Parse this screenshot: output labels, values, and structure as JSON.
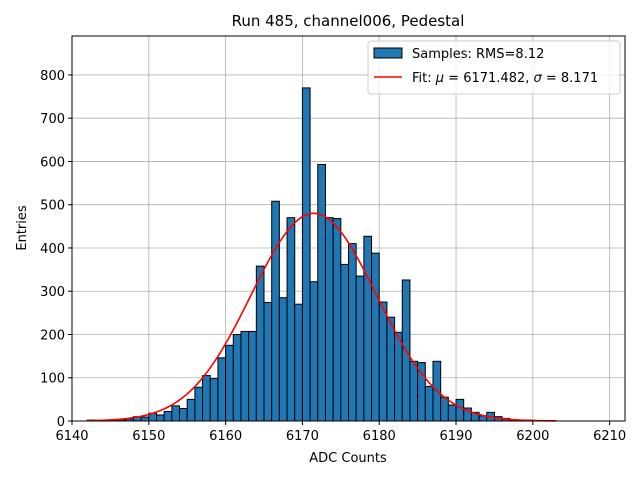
{
  "chart_data": {
    "type": "bar",
    "title": "Run 485, channel006, Pedestal",
    "xlabel": "ADC Counts",
    "ylabel": "Entries",
    "xlim": [
      6140,
      6212
    ],
    "ylim": [
      0,
      890
    ],
    "xticks": [
      6140,
      6150,
      6160,
      6170,
      6180,
      6190,
      6200,
      6210
    ],
    "yticks": [
      0,
      100,
      200,
      300,
      400,
      500,
      600,
      700,
      800
    ],
    "grid": true,
    "legend_position": "top-right",
    "bar_color": "#1f77b4",
    "bar_edge_color": "#000000",
    "fit_color": "#ff0000",
    "series": [
      {
        "name": "Samples: RMS=8.12",
        "type": "histogram",
        "bin_width": 1,
        "bin_start": [
          6142,
          6143,
          6144,
          6145,
          6146,
          6147,
          6148,
          6149,
          6150,
          6151,
          6152,
          6153,
          6154,
          6155,
          6156,
          6157,
          6158,
          6159,
          6160,
          6161,
          6162,
          6163,
          6164,
          6165,
          6166,
          6167,
          6168,
          6169,
          6170,
          6171,
          6172,
          6173,
          6174,
          6175,
          6176,
          6177,
          6178,
          6179,
          6180,
          6181,
          6182,
          6183,
          6184,
          6185,
          6186,
          6187,
          6188,
          6189,
          6190,
          6191,
          6192,
          6193,
          6194,
          6195,
          6196,
          6197,
          6198,
          6199,
          6200,
          6201,
          6202
        ],
        "values": [
          2,
          1,
          2,
          3,
          3,
          5,
          10,
          9,
          18,
          14,
          22,
          35,
          29,
          50,
          78,
          105,
          98,
          146,
          175,
          200,
          207,
          207,
          358,
          274,
          508,
          285,
          470,
          270,
          770,
          322,
          593,
          470,
          468,
          362,
          410,
          335,
          427,
          388,
          275,
          240,
          205,
          326,
          138,
          135,
          80,
          138,
          55,
          37,
          50,
          30,
          20,
          12,
          20,
          10,
          6,
          3,
          2,
          2,
          1,
          1,
          1
        ]
      },
      {
        "name": "Fit: μ = 6171.482, σ = 8.171",
        "type": "line",
        "mu": 6171.482,
        "sigma": 8.171,
        "amplitude": 480,
        "x_range": [
          6142,
          6203
        ]
      }
    ],
    "legend": {
      "samples_label": "Samples: RMS=8.12",
      "fit_prefix": "Fit: ",
      "fit_mu_symbol": "μ",
      "fit_mu_value": " = 6171.482, ",
      "fit_sigma_symbol": "σ",
      "fit_sigma_value": " = 8.171"
    }
  }
}
